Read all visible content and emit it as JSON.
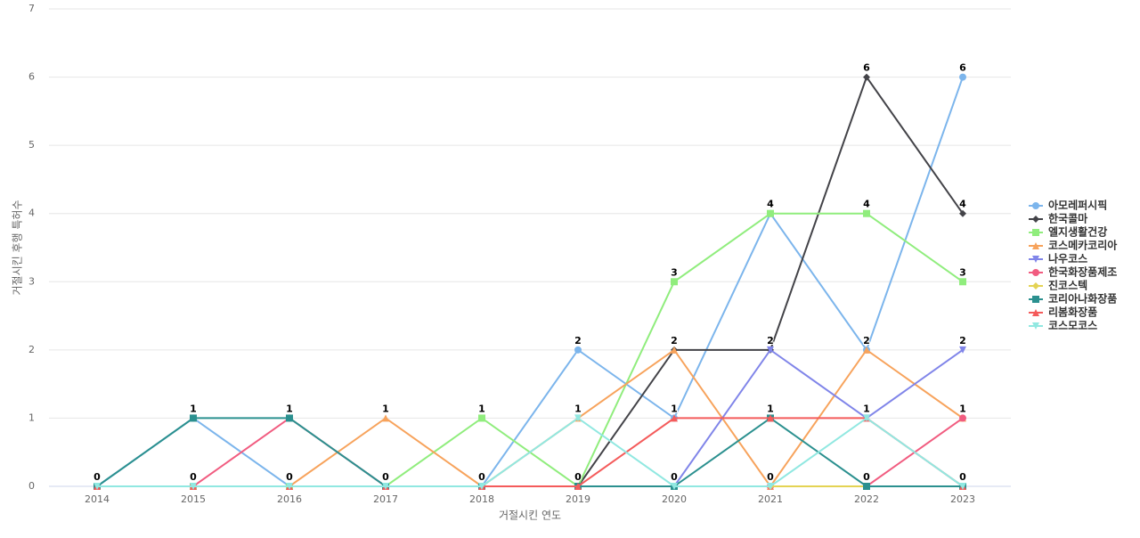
{
  "chart_data": {
    "type": "line",
    "x_label": "거절시킨 연도",
    "y_label": "거절시킨 후행 특허수",
    "categories": [
      "2014",
      "2015",
      "2016",
      "2017",
      "2018",
      "2019",
      "2020",
      "2021",
      "2022",
      "2023"
    ],
    "ylim": [
      0,
      7
    ],
    "yticks": [
      0,
      1,
      2,
      3,
      4,
      5,
      6,
      7
    ],
    "grid": true,
    "legend": "right",
    "series": [
      {
        "name": "아모레퍼시픽",
        "color": "#7cb5ec",
        "symbol": "circle",
        "values": [
          0,
          1,
          0,
          0,
          0,
          2,
          1,
          4,
          2,
          6
        ]
      },
      {
        "name": "한국콜마",
        "color": "#434348",
        "symbol": "diamond",
        "values": [
          0,
          0,
          0,
          0,
          0,
          0,
          2,
          2,
          6,
          4
        ]
      },
      {
        "name": "엘지생활건강",
        "color": "#90ed7d",
        "symbol": "square",
        "values": [
          0,
          0,
          0,
          0,
          1,
          0,
          3,
          4,
          4,
          3
        ]
      },
      {
        "name": "코스메카코리아",
        "color": "#f7a35c",
        "symbol": "triangle",
        "values": [
          0,
          0,
          0,
          1,
          0,
          1,
          2,
          0,
          2,
          1
        ]
      },
      {
        "name": "나우코스",
        "color": "#8085e9",
        "symbol": "triangle-down",
        "values": [
          0,
          0,
          0,
          0,
          0,
          0,
          0,
          2,
          1,
          2
        ]
      },
      {
        "name": "한국화장품제조",
        "color": "#f15c80",
        "symbol": "circle",
        "values": [
          0,
          0,
          1,
          0,
          0,
          0,
          0,
          0,
          0,
          1
        ]
      },
      {
        "name": "진코스텍",
        "color": "#e4d354",
        "symbol": "diamond",
        "values": [
          0,
          0,
          0,
          0,
          0,
          0,
          0,
          0,
          0,
          0
        ]
      },
      {
        "name": "코리아나화장품",
        "color": "#2b908f",
        "symbol": "square",
        "values": [
          0,
          1,
          1,
          0,
          0,
          0,
          0,
          1,
          0,
          0
        ]
      },
      {
        "name": "리봄화장품",
        "color": "#f45b5b",
        "symbol": "triangle",
        "values": [
          0,
          0,
          0,
          0,
          0,
          0,
          1,
          1,
          1,
          0
        ]
      },
      {
        "name": "코스모코스",
        "color": "#91e8e1",
        "symbol": "triangle-down",
        "values": [
          0,
          0,
          0,
          0,
          0,
          1,
          0,
          0,
          1,
          0
        ]
      }
    ]
  }
}
